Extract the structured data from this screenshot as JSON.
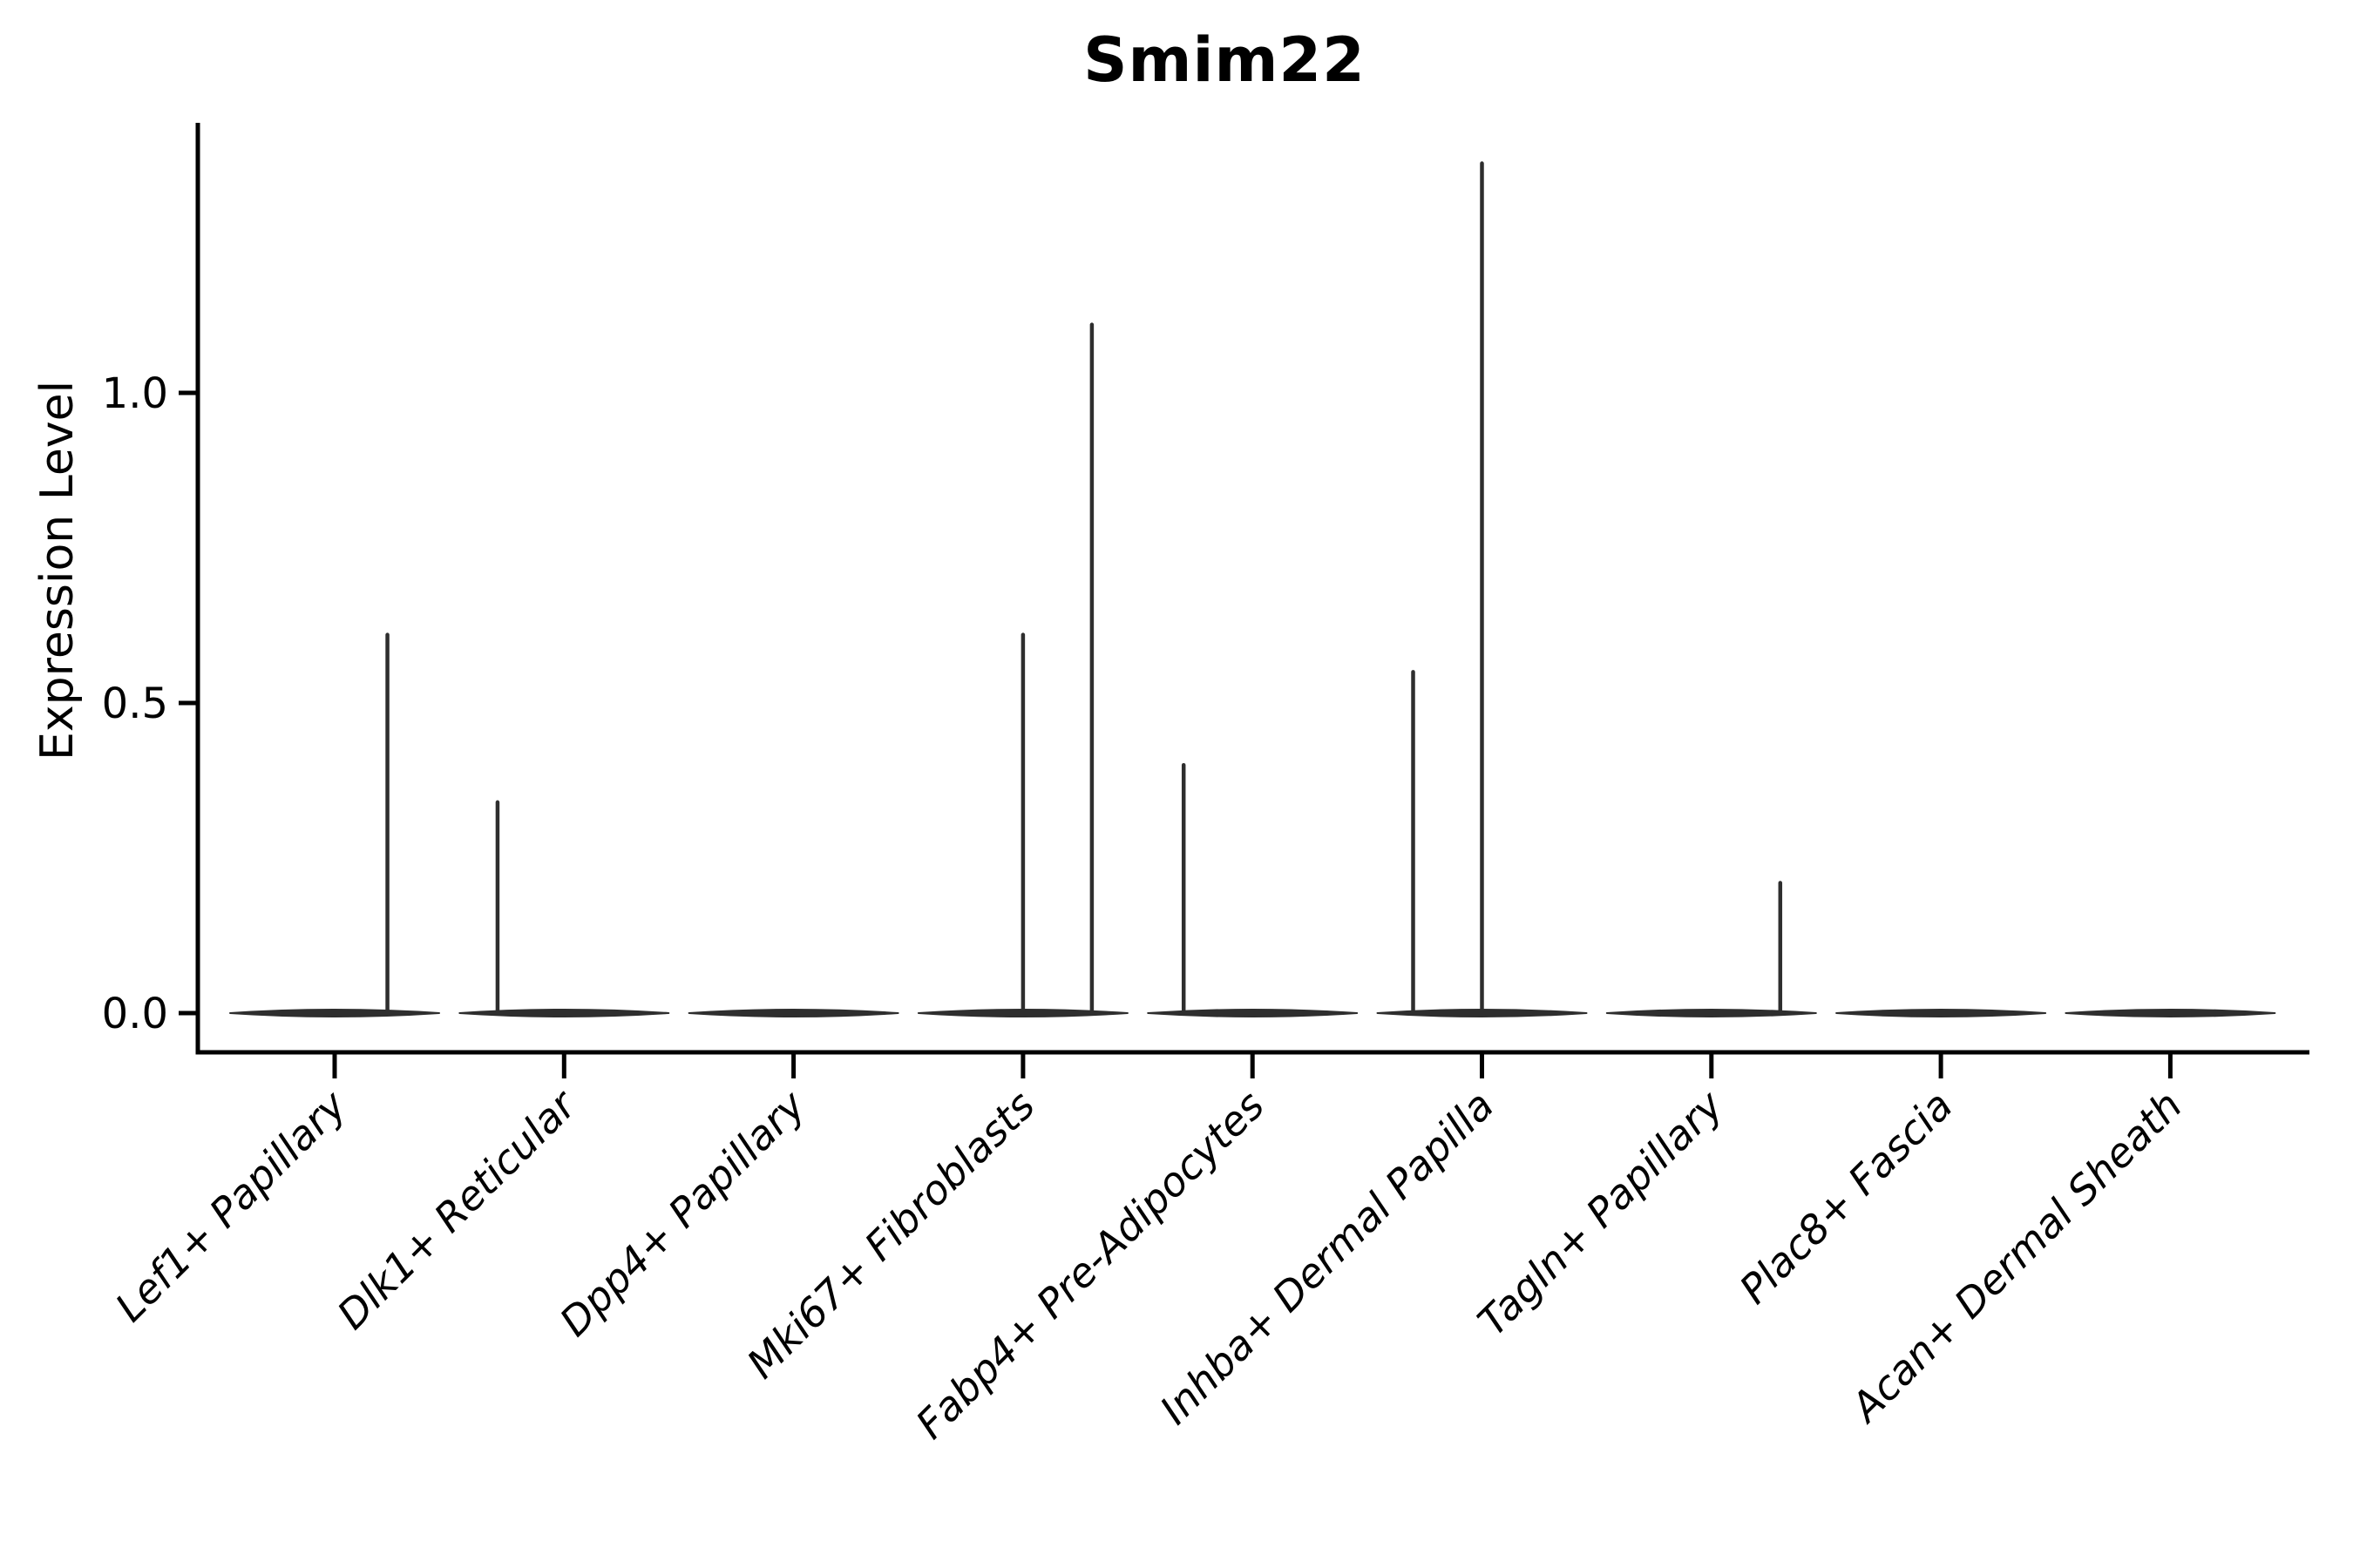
{
  "chart_data": {
    "type": "violin",
    "title": "Smim22",
    "ylabel": "Expression Level",
    "xlabel": "",
    "ylim": [
      -0.06,
      1.44
    ],
    "grid": false,
    "legend": "none",
    "yticks": {
      "values": [
        0.0,
        0.5,
        1.0
      ],
      "labels": [
        "0.0",
        "0.5",
        "1.0"
      ]
    },
    "categories": [
      "Lef1+ Papillary",
      "Dlk1+ Reticular",
      "Dpp4+ Papillary",
      "Mki67+ Fibroblasts",
      "Fabp4+ Pre-Adipocytes",
      "Inhba+ Dermal Papilla",
      "Tagln+ Papillary",
      "Plac8+ Fascia",
      "Acan+ Dermal Sheath"
    ],
    "violins": [
      {
        "category": "Lef1+ Papillary",
        "zero_band": true,
        "spikes": [
          {
            "value": 0.61,
            "x_offset": 0.23
          }
        ]
      },
      {
        "category": "Dlk1+ Reticular",
        "zero_band": true,
        "spikes": [
          {
            "value": 0.34,
            "x_offset": -0.29
          }
        ]
      },
      {
        "category": "Dpp4+ Papillary",
        "zero_band": true,
        "spikes": []
      },
      {
        "category": "Mki67+ Fibroblasts",
        "zero_band": true,
        "spikes": [
          {
            "value": 0.61,
            "x_offset": 0.0
          },
          {
            "value": 1.11,
            "x_offset": 0.3
          }
        ]
      },
      {
        "category": "Fabp4+ Pre-Adipocytes",
        "zero_band": true,
        "spikes": [
          {
            "value": 0.4,
            "x_offset": -0.3
          }
        ]
      },
      {
        "category": "Inhba+ Dermal Papilla",
        "zero_band": true,
        "spikes": [
          {
            "value": 0.55,
            "x_offset": -0.3
          },
          {
            "value": 1.37,
            "x_offset": 0.0
          }
        ]
      },
      {
        "category": "Tagln+ Papillary",
        "zero_band": true,
        "spikes": [
          {
            "value": 0.21,
            "x_offset": 0.3
          }
        ]
      },
      {
        "category": "Plac8+ Fascia",
        "zero_band": true,
        "spikes": []
      },
      {
        "category": "Acan+ Dermal Sheath",
        "zero_band": true,
        "spikes": []
      }
    ],
    "colors": {
      "violin": "#2e2e2e",
      "axis": "#000000",
      "text": "#000000",
      "background": "#ffffff"
    }
  }
}
